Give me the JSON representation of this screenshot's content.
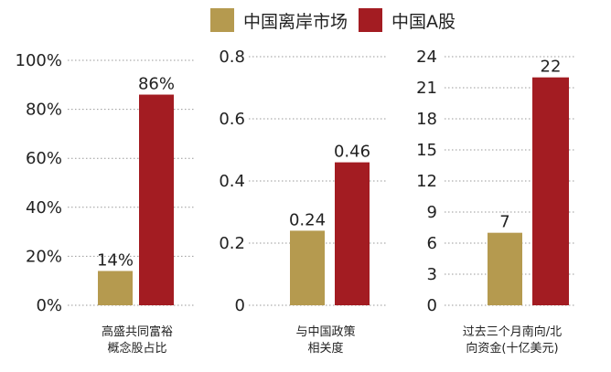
{
  "colors": {
    "offshore": "#b59a4f",
    "a_share": "#a31c22"
  },
  "legend": [
    {
      "label": "中国离岸市场",
      "color": "#b59a4f"
    },
    {
      "label": "中国A股",
      "color": "#a31c22"
    }
  ],
  "chart_data": [
    {
      "type": "bar",
      "categories": [
        "高盛共同富裕\n概念股占比"
      ],
      "category_lines": [
        "高盛共同富裕",
        "概念股占比"
      ],
      "series": [
        {
          "name": "中国离岸市场",
          "values": [
            14
          ],
          "labels": [
            "14%"
          ]
        },
        {
          "name": "中国A股",
          "values": [
            86
          ],
          "labels": [
            "86%"
          ]
        }
      ],
      "ylim": [
        0,
        100
      ],
      "yticks": [
        "0%",
        "20%",
        "40%",
        "60%",
        "80%",
        "100%"
      ],
      "ytick_values": [
        0,
        20,
        40,
        60,
        80,
        100
      ],
      "grid": true
    },
    {
      "type": "bar",
      "categories": [
        "与中国政策\n相关度"
      ],
      "category_lines": [
        "与中国政策",
        "相关度"
      ],
      "series": [
        {
          "name": "中国离岸市场",
          "values": [
            0.24
          ],
          "labels": [
            "0.24"
          ]
        },
        {
          "name": "中国A股",
          "values": [
            0.46
          ],
          "labels": [
            "0.46"
          ]
        }
      ],
      "ylim": [
        0,
        0.8
      ],
      "yticks": [
        "0",
        "0.2",
        "0.4",
        "0.6",
        "0.8"
      ],
      "ytick_values": [
        0,
        0.2,
        0.4,
        0.6,
        0.8
      ],
      "grid": true
    },
    {
      "type": "bar",
      "categories": [
        "过去三个月南向/北\n向资金(十亿美元)"
      ],
      "category_lines": [
        "过去三个月南向/北",
        "向资金(十亿美元)"
      ],
      "series": [
        {
          "name": "中国离岸市场",
          "values": [
            7
          ],
          "labels": [
            "7"
          ]
        },
        {
          "name": "中国A股",
          "values": [
            22
          ],
          "labels": [
            "22"
          ]
        }
      ],
      "ylim": [
        0,
        24
      ],
      "yticks": [
        "0",
        "3",
        "6",
        "9",
        "12",
        "15",
        "18",
        "21",
        "24"
      ],
      "ytick_values": [
        0,
        3,
        6,
        9,
        12,
        15,
        18,
        21,
        24
      ],
      "grid": true
    }
  ]
}
